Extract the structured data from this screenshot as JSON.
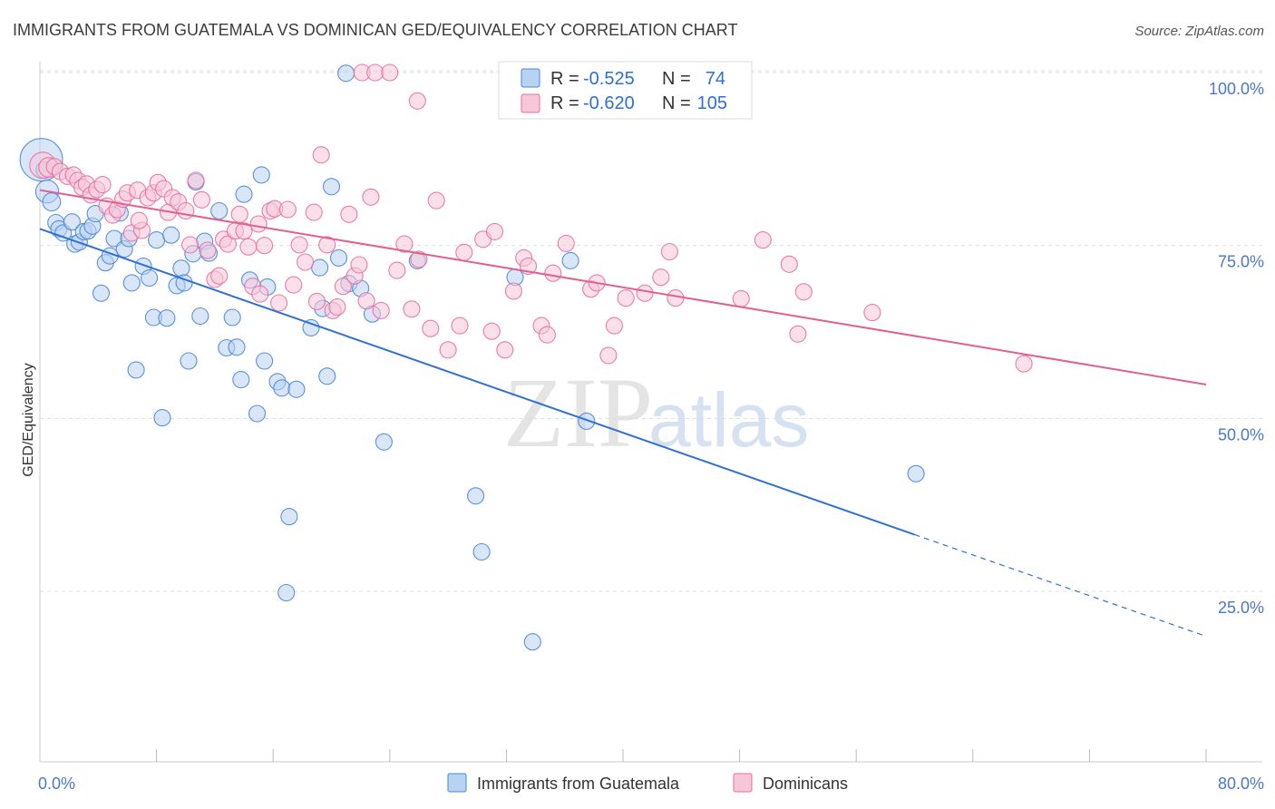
{
  "chart_data": {
    "type": "scatter",
    "title": "IMMIGRANTS FROM GUATEMALA VS DOMINICAN GED/EQUIVALENCY CORRELATION CHART",
    "source": "Source: ZipAtlas.com",
    "ylabel": "GED/Equivalency",
    "xlabel": "",
    "xlim": [
      0,
      80
    ],
    "ylim": [
      0,
      104
    ],
    "x_tick_labels": [
      "0.0%",
      "80.0%"
    ],
    "y_tick_labels": [
      {
        "value": 100,
        "label": "100.0%"
      },
      {
        "value": 75,
        "label": "75.0%"
      },
      {
        "value": 50,
        "label": "50.0%"
      },
      {
        "value": 25,
        "label": "25.0%"
      }
    ],
    "watermark": {
      "zip": "ZIP",
      "atlas": "atlas"
    },
    "colors": {
      "guatemala": "#4a86d8",
      "guatemala_fill": "#b8d2f2",
      "guatemala_line": "#2f72d4",
      "dominican": "#e86f9e",
      "dominican_fill": "#f7c6d8",
      "dominican_line": "#e0608f",
      "grid": "#dddddd",
      "tick_label": "#4a78c8"
    },
    "stats": [
      {
        "r_label": "R = ",
        "r": "-0.525",
        "n_label": "N = ",
        "n": " 74"
      },
      {
        "r_label": "R = ",
        "r": "-0.620",
        "n_label": "N = ",
        "n": "105"
      }
    ],
    "series": [
      {
        "name": "Immigrants from Guatemala",
        "color": "#4a86d8",
        "trend": {
          "x0": 0,
          "y0": 77.4,
          "x1": 60,
          "y1": 33.2,
          "dash_to_x": 80,
          "dash_to_y": 18.5
        },
        "points": [
          [
            0.1,
            87.4,
            2.6
          ],
          [
            0.5,
            82.8,
            1.4
          ],
          [
            0.8,
            81.3,
            1.1
          ],
          [
            1.1,
            78.3,
            1.0
          ],
          [
            1.3,
            77.4,
            1.0
          ],
          [
            1.6,
            76.8,
            1.0
          ],
          [
            2.2,
            78.4,
            1.0
          ],
          [
            2.4,
            75.2,
            1.0
          ],
          [
            2.7,
            75.5,
            1.0
          ],
          [
            3.0,
            77.0,
            1.0
          ],
          [
            3.3,
            77.1,
            1.0
          ],
          [
            3.6,
            77.8,
            1.0
          ],
          [
            3.8,
            79.6,
            1.0
          ],
          [
            4.2,
            68.1,
            1.0
          ],
          [
            4.5,
            72.5,
            1.0
          ],
          [
            4.8,
            73.5,
            1.0
          ],
          [
            5.1,
            76.0,
            1.0
          ],
          [
            5.5,
            79.7,
            1.0
          ],
          [
            5.8,
            74.5,
            1.0
          ],
          [
            6.1,
            76.0,
            1.0
          ],
          [
            6.3,
            69.6,
            1.0
          ],
          [
            6.6,
            57.0,
            1.0
          ],
          [
            7.1,
            72.0,
            1.0
          ],
          [
            7.5,
            70.3,
            1.0
          ],
          [
            7.8,
            64.6,
            1.0
          ],
          [
            8.0,
            75.8,
            1.0
          ],
          [
            8.4,
            50.1,
            1.0
          ],
          [
            8.7,
            64.5,
            1.0
          ],
          [
            9.0,
            76.5,
            1.0
          ],
          [
            9.4,
            69.2,
            1.0
          ],
          [
            9.7,
            71.7,
            1.0
          ],
          [
            9.9,
            69.6,
            1.0
          ],
          [
            10.2,
            58.3,
            1.0
          ],
          [
            10.5,
            73.8,
            1.0
          ],
          [
            10.7,
            84.2,
            1.0
          ],
          [
            11.0,
            64.8,
            1.0
          ],
          [
            11.3,
            75.6,
            1.0
          ],
          [
            11.6,
            73.9,
            1.0
          ],
          [
            12.3,
            80.0,
            1.0
          ],
          [
            12.8,
            60.2,
            1.0
          ],
          [
            13.2,
            64.6,
            1.0
          ],
          [
            13.5,
            60.3,
            1.0
          ],
          [
            13.8,
            55.6,
            1.0
          ],
          [
            14.0,
            82.4,
            1.0
          ],
          [
            14.4,
            70.0,
            1.0
          ],
          [
            14.9,
            50.7,
            1.0
          ],
          [
            15.2,
            85.2,
            1.0
          ],
          [
            15.4,
            58.3,
            1.0
          ],
          [
            15.6,
            69.0,
            1.0
          ],
          [
            16.3,
            55.3,
            1.0
          ],
          [
            16.6,
            54.4,
            1.0
          ],
          [
            16.9,
            24.8,
            1.0
          ],
          [
            17.1,
            35.8,
            1.0
          ],
          [
            17.6,
            54.2,
            1.0
          ],
          [
            18.6,
            63.1,
            1.0
          ],
          [
            19.2,
            71.8,
            1.0
          ],
          [
            19.4,
            65.9,
            1.0
          ],
          [
            19.7,
            56.1,
            1.0
          ],
          [
            20.0,
            83.5,
            1.0
          ],
          [
            20.5,
            73.2,
            1.0
          ],
          [
            21.0,
            99.9,
            1.0
          ],
          [
            21.2,
            69.5,
            1.0
          ],
          [
            22.0,
            68.8,
            1.0
          ],
          [
            22.8,
            65.1,
            1.0
          ],
          [
            23.6,
            46.6,
            1.0
          ],
          [
            25.9,
            72.8,
            1.0
          ],
          [
            29.9,
            38.8,
            1.0
          ],
          [
            30.3,
            30.7,
            1.0
          ],
          [
            32.6,
            70.4,
            1.0
          ],
          [
            33.8,
            17.7,
            1.0
          ],
          [
            36.4,
            72.8,
            1.0
          ],
          [
            37.5,
            49.6,
            1.0
          ],
          [
            60.1,
            42.0,
            1.0
          ],
          [
            0.3,
            85.9,
            1.0
          ]
        ]
      },
      {
        "name": "Dominicans",
        "color": "#e86f9e",
        "trend": {
          "x0": 0,
          "y0": 83.0,
          "x1": 80,
          "y1": 54.9
        },
        "points": [
          [
            0.2,
            86.6,
            1.6
          ],
          [
            0.6,
            86.3,
            1.2
          ],
          [
            1.0,
            86.4,
            1.0
          ],
          [
            1.4,
            85.7,
            1.0
          ],
          [
            1.9,
            85.0,
            1.0
          ],
          [
            2.3,
            85.2,
            1.0
          ],
          [
            2.6,
            84.4,
            1.0
          ],
          [
            2.9,
            83.4,
            1.0
          ],
          [
            3.2,
            83.9,
            1.0
          ],
          [
            3.5,
            82.3,
            1.0
          ],
          [
            3.9,
            83.1,
            1.0
          ],
          [
            4.3,
            83.8,
            1.0
          ],
          [
            4.6,
            80.7,
            1.0
          ],
          [
            5.0,
            79.4,
            1.0
          ],
          [
            5.3,
            80.2,
            1.0
          ],
          [
            5.7,
            81.7,
            1.0
          ],
          [
            6.0,
            82.6,
            1.0
          ],
          [
            6.3,
            76.8,
            1.0
          ],
          [
            6.7,
            83.0,
            1.0
          ],
          [
            7.0,
            77.2,
            1.0
          ],
          [
            7.4,
            81.9,
            1.0
          ],
          [
            7.8,
            82.6,
            1.0
          ],
          [
            8.1,
            84.1,
            1.0
          ],
          [
            8.5,
            83.2,
            1.0
          ],
          [
            8.8,
            79.8,
            1.0
          ],
          [
            9.1,
            81.9,
            1.0
          ],
          [
            9.5,
            81.3,
            1.0
          ],
          [
            10.0,
            80.0,
            1.0
          ],
          [
            10.3,
            75.1,
            1.0
          ],
          [
            10.7,
            84.4,
            1.0
          ],
          [
            11.1,
            81.6,
            1.0
          ],
          [
            11.5,
            74.3,
            1.0
          ],
          [
            12.0,
            70.1,
            1.0
          ],
          [
            12.3,
            70.6,
            1.0
          ],
          [
            12.6,
            75.9,
            1.0
          ],
          [
            12.9,
            75.2,
            1.0
          ],
          [
            13.4,
            77.1,
            1.0
          ],
          [
            13.7,
            79.5,
            1.0
          ],
          [
            14.0,
            77.1,
            1.0
          ],
          [
            14.3,
            74.8,
            1.0
          ],
          [
            14.6,
            69.1,
            1.0
          ],
          [
            15.0,
            78.1,
            1.0
          ],
          [
            15.4,
            75.0,
            1.0
          ],
          [
            15.8,
            80.0,
            1.0
          ],
          [
            16.1,
            80.3,
            1.0
          ],
          [
            16.4,
            66.7,
            1.0
          ],
          [
            17.0,
            80.2,
            1.0
          ],
          [
            17.4,
            69.3,
            1.0
          ],
          [
            17.8,
            75.1,
            1.0
          ],
          [
            18.2,
            72.6,
            1.0
          ],
          [
            18.8,
            79.8,
            1.0
          ],
          [
            19.0,
            66.9,
            1.0
          ],
          [
            19.3,
            88.1,
            1.0
          ],
          [
            19.7,
            75.1,
            1.0
          ],
          [
            20.1,
            65.6,
            1.0
          ],
          [
            20.4,
            66.1,
            1.0
          ],
          [
            20.8,
            69.1,
            1.0
          ],
          [
            21.2,
            79.5,
            1.0
          ],
          [
            21.6,
            70.6,
            1.0
          ],
          [
            21.9,
            72.2,
            1.0
          ],
          [
            22.1,
            100.0,
            1.0
          ],
          [
            22.4,
            67.0,
            1.0
          ],
          [
            22.7,
            82.0,
            1.0
          ],
          [
            23.0,
            100.0,
            1.0
          ],
          [
            23.4,
            65.6,
            1.0
          ],
          [
            24.0,
            100.0,
            1.0
          ],
          [
            24.5,
            71.4,
            1.0
          ],
          [
            25.0,
            75.2,
            1.0
          ],
          [
            25.5,
            65.8,
            1.0
          ],
          [
            25.9,
            95.9,
            1.0
          ],
          [
            26.0,
            73.0,
            1.0
          ],
          [
            26.8,
            63.0,
            1.0
          ],
          [
            27.2,
            81.5,
            1.0
          ],
          [
            28.0,
            59.9,
            1.0
          ],
          [
            28.8,
            63.4,
            1.0
          ],
          [
            29.1,
            74.0,
            1.0
          ],
          [
            30.4,
            75.9,
            1.0
          ],
          [
            31.2,
            77.0,
            1.0
          ],
          [
            31.0,
            62.6,
            1.0
          ],
          [
            31.9,
            59.9,
            1.0
          ],
          [
            32.5,
            68.4,
            1.0
          ],
          [
            33.2,
            73.2,
            1.0
          ],
          [
            33.5,
            72.0,
            1.0
          ],
          [
            34.4,
            63.4,
            1.0
          ],
          [
            34.8,
            62.1,
            1.0
          ],
          [
            35.2,
            71.0,
            1.0
          ],
          [
            36.1,
            75.3,
            1.0
          ],
          [
            37.8,
            68.7,
            1.0
          ],
          [
            39.0,
            59.1,
            1.0
          ],
          [
            39.4,
            63.4,
            1.0
          ],
          [
            40.2,
            67.4,
            1.0
          ],
          [
            41.5,
            68.1,
            1.0
          ],
          [
            42.6,
            70.4,
            1.0
          ],
          [
            43.2,
            74.1,
            1.0
          ],
          [
            43.6,
            67.4,
            1.0
          ],
          [
            48.1,
            67.3,
            1.0
          ],
          [
            49.6,
            75.8,
            1.0
          ],
          [
            51.4,
            72.3,
            1.0
          ],
          [
            52.0,
            62.2,
            1.0
          ],
          [
            52.4,
            68.3,
            1.0
          ],
          [
            57.1,
            65.3,
            1.0
          ],
          [
            67.5,
            57.9,
            1.0
          ],
          [
            38.2,
            69.6,
            1.0
          ],
          [
            15.1,
            68.0,
            1.0
          ],
          [
            6.8,
            78.6,
            1.0
          ]
        ]
      }
    ]
  }
}
